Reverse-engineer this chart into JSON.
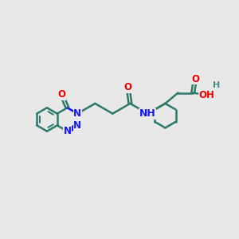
{
  "background_color": "#e8e8e8",
  "bond_color": "#2d7a6a",
  "n_color": "#1414ff",
  "o_color": "#ee0000",
  "h_color": "#4a8a8a",
  "bond_width": 1.8,
  "font_size": 8.5,
  "fig_size": [
    3.0,
    3.0
  ],
  "dpi": 100,
  "xlim": [
    -0.5,
    10.5
  ],
  "ylim": [
    1.5,
    8.5
  ]
}
